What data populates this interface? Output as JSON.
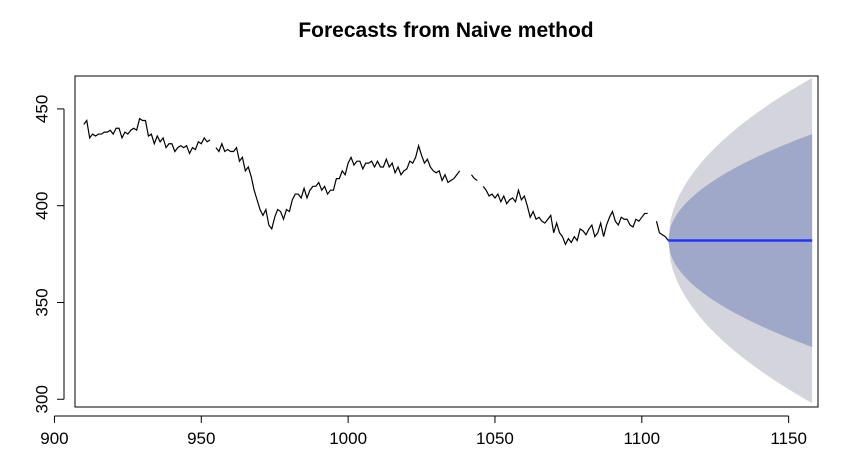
{
  "chart_data": {
    "type": "line",
    "title": "Forecasts from Naive method",
    "xlabel": "",
    "ylabel": "",
    "xlim": [
      907,
      1160
    ],
    "ylim": [
      296,
      467
    ],
    "x_ticks": [
      900,
      950,
      1000,
      1050,
      1100,
      1150
    ],
    "y_ticks": [
      300,
      350,
      400,
      450
    ],
    "grid": false,
    "legend": "none",
    "series": [
      {
        "role": "history",
        "color": "#000000",
        "segments": [
          {
            "x": [
              910,
              911,
              912,
              913,
              914,
              915,
              916,
              917,
              918,
              919,
              920,
              921,
              922,
              923,
              924,
              925,
              926,
              927,
              928,
              929,
              930,
              931,
              932,
              933,
              934,
              935,
              936,
              937,
              938,
              939,
              940,
              941,
              942,
              943,
              944,
              945,
              946,
              947,
              948,
              949,
              950,
              951,
              952,
              953
            ],
            "y": [
              442,
              444,
              435,
              437,
              436,
              437,
              437,
              438,
              438,
              439,
              437,
              440,
              440,
              435,
              438,
              437,
              439,
              440,
              439,
              445,
              444,
              444,
              436,
              437,
              432,
              436,
              433,
              435,
              430,
              432,
              432,
              428,
              430,
              431,
              430,
              431,
              427,
              430,
              429,
              433,
              432,
              435,
              433,
              434
            ]
          },
          {
            "x": [
              955,
              956,
              957,
              958,
              959,
              960,
              961,
              962,
              963,
              964,
              965,
              966,
              967,
              968,
              969,
              970,
              971,
              972,
              973,
              974,
              975,
              976,
              977,
              978,
              979,
              980,
              981,
              982,
              983,
              984,
              985,
              986,
              987,
              988,
              989,
              990,
              991,
              992,
              993,
              994,
              995,
              996,
              997,
              998,
              999,
              1000,
              1001,
              1002,
              1003,
              1004,
              1005,
              1006,
              1007,
              1008,
              1009,
              1010,
              1011,
              1012,
              1013,
              1014,
              1015,
              1016,
              1017,
              1018,
              1019,
              1020,
              1021,
              1022,
              1023,
              1024,
              1025,
              1026,
              1027,
              1028,
              1029,
              1030,
              1031,
              1032,
              1033,
              1034,
              1035,
              1036,
              1037,
              1038
            ],
            "y": [
              430,
              428,
              432,
              428,
              429,
              428,
              428,
              430,
              423,
              425,
              418,
              420,
              415,
              408,
              403,
              398,
              395,
              398,
              390,
              388,
              394,
              398,
              397,
              393,
              398,
              397,
              403,
              406,
              406,
              404,
              409,
              404,
              408,
              410,
              410,
              412,
              408,
              410,
              406,
              408,
              408,
              414,
              414,
              418,
              416,
              422,
              425,
              421,
              423,
              423,
              419,
              422,
              422,
              423,
              420,
              423,
              420,
              420,
              424,
              420,
              422,
              417,
              420,
              416,
              418,
              419,
              423,
              422,
              425,
              431,
              426,
              422,
              424,
              420,
              418,
              417,
              418,
              413,
              416,
              412,
              413,
              414,
              416,
              418
            ]
          },
          {
            "x": [
              1042,
              1043,
              1044
            ],
            "y": [
              416,
              414,
              413
            ]
          },
          {
            "x": [
              1046,
              1047,
              1048,
              1049,
              1050,
              1051,
              1052,
              1053,
              1054,
              1055,
              1056,
              1057,
              1058,
              1059,
              1060,
              1061,
              1062,
              1063,
              1064,
              1065,
              1066,
              1067,
              1068,
              1069,
              1070,
              1071,
              1072,
              1073,
              1074,
              1075,
              1076,
              1077,
              1078,
              1079,
              1080,
              1081,
              1082,
              1083,
              1084,
              1085,
              1086,
              1087,
              1088,
              1089,
              1090,
              1091,
              1092,
              1093,
              1094,
              1095,
              1096,
              1097,
              1098,
              1099,
              1100,
              1101,
              1102
            ],
            "y": [
              410,
              408,
              405,
              406,
              404,
              406,
              402,
              405,
              401,
              403,
              404,
              402,
              408,
              403,
              405,
              400,
              394,
              397,
              393,
              394,
              392,
              391,
              393,
              395,
              386,
              391,
              386,
              384,
              380,
              383,
              381,
              384,
              382,
              388,
              387,
              385,
              388,
              390,
              384,
              386,
              391,
              384,
              390,
              394,
              397,
              392,
              390,
              394,
              393,
              393,
              390,
              389,
              393,
              392,
              394,
              396,
              396
            ]
          },
          {
            "x": [
              1105,
              1106,
              1107,
              1108,
              1109
            ],
            "y": [
              392,
              386,
              385,
              384,
              382
            ]
          }
        ]
      },
      {
        "role": "forecast",
        "color": "#2233ff",
        "x": [
          1109,
          1158
        ],
        "y": [
          382,
          382
        ]
      },
      {
        "role": "interval-95",
        "color": "#d4d4dc",
        "x_start": 1109,
        "x_end": 1158,
        "center": 382,
        "half_width_at_end": 84
      },
      {
        "role": "interval-80",
        "color": "#a0a8ca",
        "x_start": 1109,
        "x_end": 1158,
        "center": 382,
        "half_width_at_end": 55
      }
    ]
  }
}
